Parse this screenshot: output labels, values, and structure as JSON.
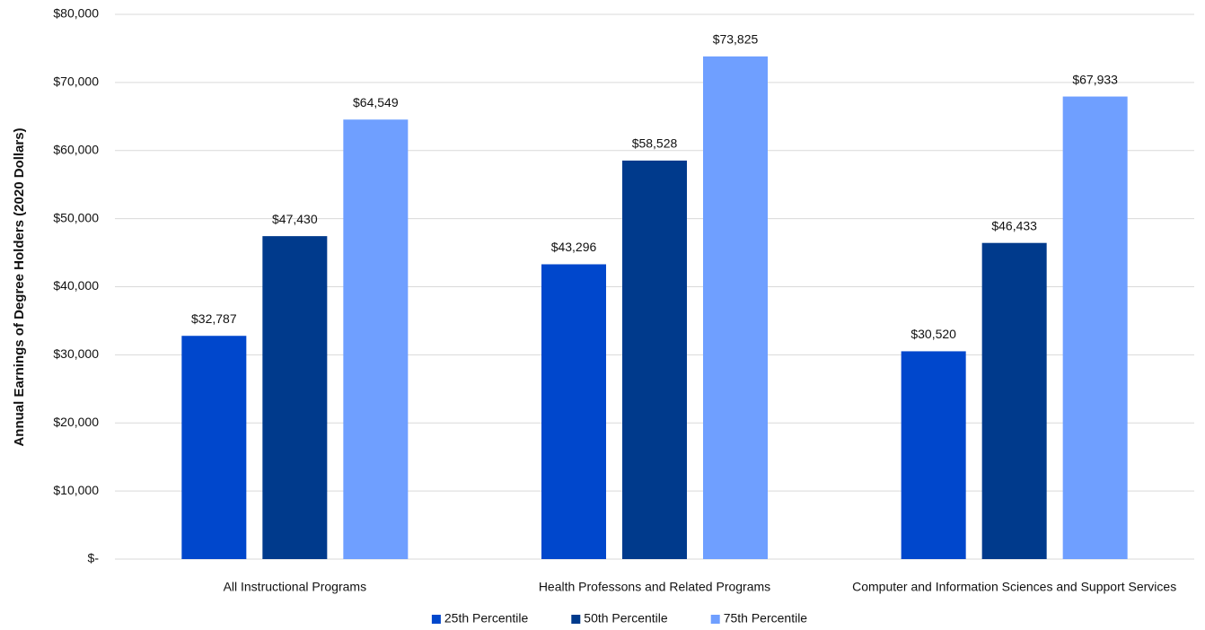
{
  "chart_data": {
    "type": "bar",
    "y_label": "Annual Earnings of Degree Holders (2020 Dollars)",
    "categories": [
      "All Instructional Programs",
      "Health Professons and Related Programs",
      "Computer and Information Sciences and Support Services"
    ],
    "series": [
      {
        "name": "25th Percentile",
        "color": "#0047cc",
        "values": [
          32787,
          43296,
          30520
        ],
        "value_labels": [
          "$32,787",
          "$43,296",
          "$30,520"
        ]
      },
      {
        "name": "50th Percentile",
        "color": "#003a8c",
        "values": [
          47430,
          58528,
          46433
        ],
        "value_labels": [
          "$47,430",
          "$58,528",
          "$46,433"
        ]
      },
      {
        "name": "75th Percentile",
        "color": "#6f9fff",
        "values": [
          64549,
          73825,
          67933
        ],
        "value_labels": [
          "$64,549",
          "$73,825",
          "$67,933"
        ]
      }
    ],
    "ylim": [
      0,
      80000
    ],
    "yticks": [
      {
        "value": 0,
        "label": "$-"
      },
      {
        "value": 10000,
        "label": "$10,000"
      },
      {
        "value": 20000,
        "label": "$20,000"
      },
      {
        "value": 30000,
        "label": "$30,000"
      },
      {
        "value": 40000,
        "label": "$40,000"
      },
      {
        "value": 50000,
        "label": "$50,000"
      },
      {
        "value": 60000,
        "label": "$60,000"
      },
      {
        "value": 70000,
        "label": "$70,000"
      },
      {
        "value": 80000,
        "label": "$80,000"
      }
    ],
    "grid": true,
    "legend": "bottom"
  }
}
